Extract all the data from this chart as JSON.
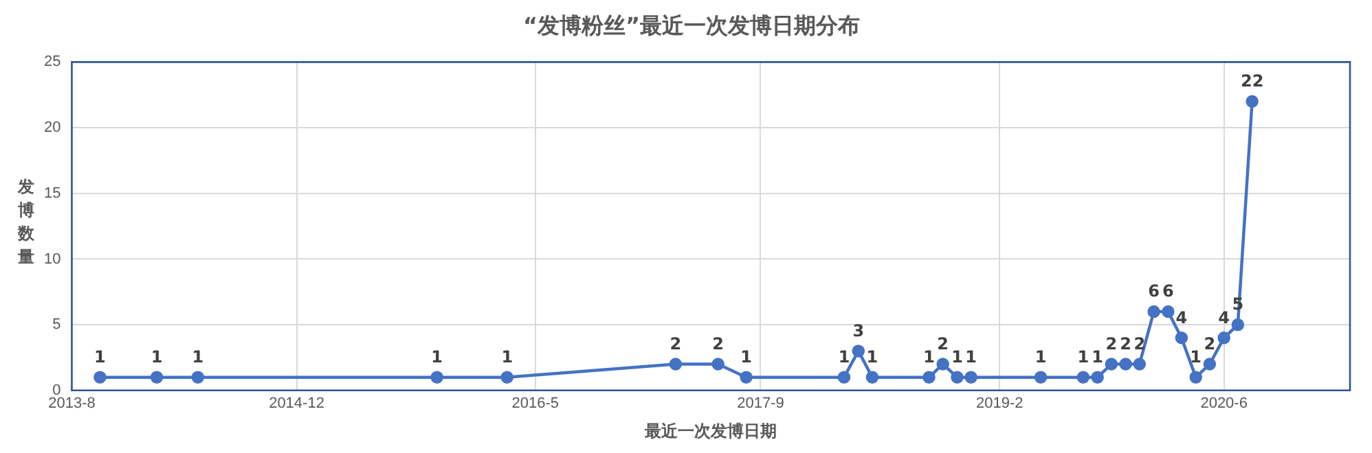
{
  "chart_data": {
    "type": "line",
    "title": "“发博粉丝”最近一次发博日期分布",
    "xlabel": "最近一次发博日期",
    "ylabel": "发博数量",
    "x": [
      "2013-10",
      "2014-02",
      "2014-05",
      "2015-10",
      "2016-03",
      "2017-03",
      "2017-06",
      "2017-08",
      "2018-03",
      "2018-04",
      "2018-05",
      "2018-09",
      "2018-10",
      "2018-11",
      "2018-12",
      "2019-05",
      "2019-08",
      "2019-09",
      "2019-10",
      "2019-11",
      "2019-12",
      "2020-01",
      "2020-02",
      "2020-03",
      "2020-04",
      "2020-05",
      "2020-06",
      "2020-07",
      "2020-08"
    ],
    "series": [
      {
        "color": "#4472c4",
        "values": [
          1,
          1,
          1,
          1,
          1,
          2,
          2,
          1,
          1,
          3,
          1,
          1,
          2,
          1,
          1,
          1,
          1,
          1,
          2,
          2,
          2,
          6,
          6,
          4,
          1,
          2,
          4,
          5,
          22
        ]
      }
    ],
    "xlim": [
      "2013-08",
      "2021-03"
    ],
    "xticks": [
      {
        "value": "2013-08",
        "label": "2013-8"
      },
      {
        "value": "2014-12",
        "label": "2014-12"
      },
      {
        "value": "2016-05",
        "label": "2016-5"
      },
      {
        "value": "2017-09",
        "label": "2017-9"
      },
      {
        "value": "2019-02",
        "label": "2019-2"
      },
      {
        "value": "2020-06",
        "label": "2020-6"
      }
    ],
    "ylim": [
      0,
      25
    ],
    "yticks": [
      0,
      5,
      10,
      15,
      20,
      25
    ],
    "grid": true,
    "legend": false,
    "marker": "circle",
    "line_style": "solid",
    "data_labels": true
  }
}
